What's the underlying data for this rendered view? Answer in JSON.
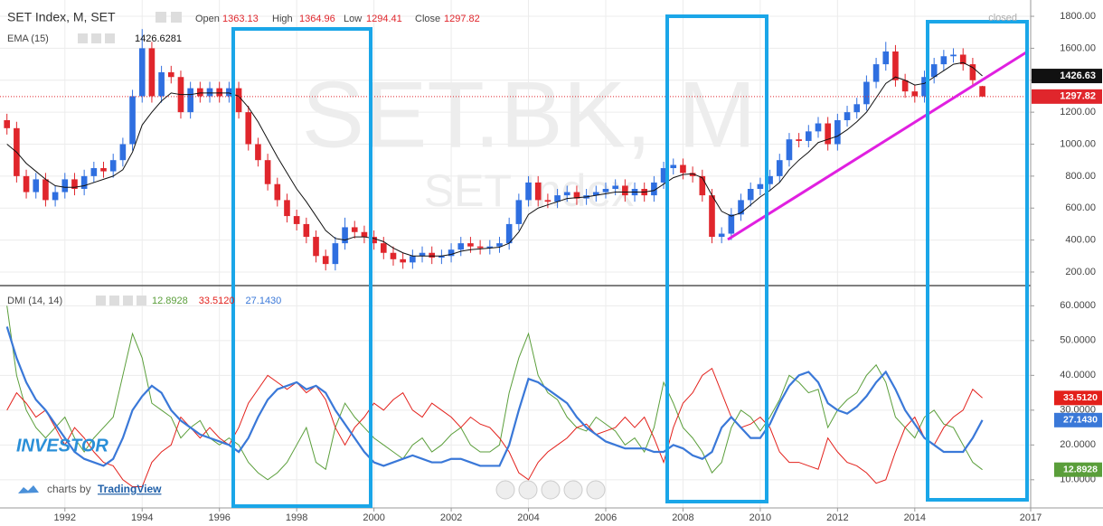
{
  "chart_data": [
    {
      "type": "candlestick",
      "title": "SET Index, M, SET",
      "watermark": "SET.BK, M",
      "watermark_sub": "SET Index",
      "ohlc_labels": [
        "Open",
        "High",
        "Low",
        "Close"
      ],
      "status": "closed",
      "x": [
        1990.5,
        1990.75,
        1991,
        1991.25,
        1991.5,
        1991.75,
        1992,
        1992.25,
        1992.5,
        1992.75,
        1993,
        1993.25,
        1993.5,
        1993.75,
        1994,
        1994.25,
        1994.5,
        1994.75,
        1995,
        1995.25,
        1995.5,
        1995.75,
        1996,
        1996.25,
        1996.5,
        1996.75,
        1997,
        1997.25,
        1997.5,
        1997.75,
        1998,
        1998.25,
        1998.5,
        1998.75,
        1999,
        1999.25,
        1999.5,
        1999.75,
        2000,
        2000.25,
        2000.5,
        2000.75,
        2001,
        2001.25,
        2001.5,
        2001.75,
        2002,
        2002.25,
        2002.5,
        2002.75,
        2003,
        2003.25,
        2003.5,
        2003.75,
        2004,
        2004.25,
        2004.5,
        2004.75,
        2005,
        2005.25,
        2005.5,
        2005.75,
        2006,
        2006.25,
        2006.5,
        2006.75,
        2007,
        2007.25,
        2007.5,
        2007.75,
        2008,
        2008.25,
        2008.5,
        2008.75,
        2009,
        2009.25,
        2009.5,
        2009.75,
        2010,
        2010.25,
        2010.5,
        2010.75,
        2011,
        2011.25,
        2011.5,
        2011.75,
        2012,
        2012.25,
        2012.5,
        2012.75,
        2013,
        2013.25,
        2013.5,
        2013.75,
        2014,
        2014.25,
        2014.5,
        2014.75,
        2015,
        2015.25,
        2015.5,
        2015.75
      ],
      "open": [
        1150,
        1100,
        800,
        700,
        780,
        650,
        700,
        780,
        720,
        800,
        850,
        830,
        900,
        1000,
        1300,
        1600,
        1300,
        1450,
        1420,
        1200,
        1350,
        1300,
        1350,
        1300,
        1350,
        1200,
        1000,
        900,
        750,
        650,
        550,
        500,
        420,
        300,
        250,
        380,
        480,
        450,
        420,
        380,
        320,
        280,
        260,
        300,
        320,
        290,
        300,
        340,
        380,
        360,
        350,
        360,
        380,
        500,
        650,
        760,
        650,
        640,
        680,
        700,
        660,
        680,
        700,
        720,
        740,
        680,
        720,
        680,
        760,
        850,
        870,
        820,
        800,
        680,
        420,
        440,
        560,
        650,
        720,
        750,
        800,
        900,
        1030,
        1020,
        1080,
        1130,
        1000,
        1150,
        1200,
        1250,
        1390,
        1500,
        1580,
        1400,
        1330,
        1300,
        1420,
        1500,
        1550,
        1560,
        1500,
        1363.13
      ],
      "high": [
        1190,
        1140,
        840,
        820,
        820,
        740,
        820,
        820,
        840,
        890,
        890,
        940,
        1040,
        1340,
        1720,
        1640,
        1490,
        1490,
        1460,
        1390,
        1390,
        1390,
        1390,
        1390,
        1390,
        1240,
        1040,
        940,
        790,
        690,
        590,
        540,
        460,
        340,
        420,
        540,
        520,
        490,
        460,
        420,
        360,
        320,
        340,
        360,
        360,
        340,
        380,
        420,
        420,
        400,
        400,
        420,
        540,
        690,
        800,
        800,
        690,
        720,
        740,
        740,
        720,
        740,
        760,
        780,
        780,
        760,
        760,
        800,
        890,
        910,
        910,
        860,
        840,
        720,
        480,
        600,
        690,
        760,
        790,
        840,
        940,
        1070,
        1070,
        1120,
        1170,
        1170,
        1190,
        1240,
        1290,
        1430,
        1540,
        1640,
        1620,
        1440,
        1370,
        1460,
        1540,
        1590,
        1600,
        1600,
        1540,
        1364.96
      ],
      "low": [
        1060,
        760,
        660,
        660,
        610,
        610,
        660,
        680,
        680,
        760,
        790,
        790,
        860,
        960,
        1260,
        1260,
        1260,
        1380,
        1160,
        1160,
        1260,
        1260,
        1260,
        1260,
        1160,
        960,
        860,
        710,
        610,
        510,
        460,
        380,
        260,
        210,
        210,
        340,
        410,
        380,
        340,
        280,
        240,
        220,
        220,
        260,
        250,
        250,
        260,
        300,
        320,
        310,
        310,
        320,
        340,
        460,
        610,
        610,
        600,
        600,
        640,
        620,
        620,
        640,
        660,
        680,
        640,
        640,
        640,
        640,
        720,
        810,
        780,
        760,
        640,
        380,
        380,
        400,
        520,
        610,
        680,
        710,
        760,
        860,
        980,
        980,
        1040,
        960,
        960,
        1110,
        1160,
        1210,
        1350,
        1460,
        1360,
        1290,
        1260,
        1260,
        1380,
        1460,
        1510,
        1460,
        1360,
        1294.41
      ],
      "close": [
        1100,
        800,
        700,
        780,
        650,
        700,
        780,
        720,
        800,
        850,
        830,
        900,
        1000,
        1300,
        1600,
        1300,
        1450,
        1420,
        1200,
        1350,
        1300,
        1350,
        1300,
        1350,
        1200,
        1000,
        900,
        750,
        650,
        550,
        500,
        420,
        300,
        250,
        380,
        480,
        450,
        420,
        380,
        320,
        280,
        260,
        300,
        320,
        290,
        300,
        340,
        380,
        360,
        350,
        360,
        380,
        500,
        650,
        760,
        650,
        640,
        680,
        700,
        660,
        680,
        700,
        720,
        740,
        680,
        720,
        680,
        760,
        850,
        870,
        820,
        800,
        680,
        420,
        440,
        560,
        650,
        720,
        750,
        800,
        900,
        1030,
        1020,
        1080,
        1130,
        1000,
        1150,
        1200,
        1250,
        1390,
        1500,
        1580,
        1400,
        1330,
        1300,
        1420,
        1500,
        1550,
        1560,
        1500,
        1400,
        1297.82
      ],
      "up_color": "#2f6fe0",
      "down_color": "#e0262c",
      "overlay": {
        "name": "EMA (15)",
        "color": "#111111",
        "values": [
          1000,
          950,
          880,
          830,
          780,
          740,
          730,
          730,
          740,
          760,
          780,
          800,
          840,
          950,
          1120,
          1200,
          1270,
          1320,
          1310,
          1310,
          1320,
          1320,
          1320,
          1320,
          1300,
          1230,
          1140,
          1030,
          920,
          820,
          720,
          640,
          550,
          460,
          410,
          400,
          420,
          420,
          410,
          390,
          350,
          320,
          300,
          300,
          300,
          300,
          310,
          330,
          340,
          345,
          350,
          355,
          380,
          450,
          560,
          600,
          620,
          640,
          660,
          665,
          670,
          680,
          690,
          700,
          700,
          700,
          700,
          710,
          750,
          790,
          810,
          815,
          790,
          680,
          580,
          550,
          570,
          620,
          670,
          710,
          760,
          840,
          900,
          950,
          1010,
          1030,
          1050,
          1090,
          1140,
          1200,
          1290,
          1380,
          1420,
          1400,
          1370,
          1380,
          1420,
          1460,
          1500,
          1510,
          1480,
          1426.6281
        ]
      },
      "price_tags": [
        {
          "value": 1426.63,
          "color": "#111111",
          "dotted": false
        },
        {
          "value": 1297.82,
          "color": "#e0262c",
          "dotted": true
        }
      ],
      "xlim": [
        1990.32,
        2017
      ],
      "ylim": [
        115,
        1902
      ],
      "xticks": [
        1992,
        1994,
        1996,
        1998,
        2000,
        2002,
        2004,
        2006,
        2008,
        2010,
        2012,
        2014,
        2017
      ],
      "yticks": [
        {
          "value": 200,
          "label": "200.00"
        },
        {
          "value": 400,
          "label": "400.00"
        },
        {
          "value": 600,
          "label": "600.00"
        },
        {
          "value": 800,
          "label": "800.00"
        },
        {
          "value": 1000,
          "label": "1000.00"
        },
        {
          "value": 1200,
          "label": "1200.00"
        },
        {
          "value": 1400,
          "label": "1400.00"
        },
        {
          "value": 1600,
          "label": "1600.00"
        },
        {
          "value": 1800,
          "label": "1800.00"
        }
      ],
      "grid": true
    },
    {
      "type": "line",
      "title": "DMI (14, 14)",
      "ylim": [
        1.9,
        65.8
      ],
      "yticks": [
        {
          "value": 10,
          "label": "10.0000"
        },
        {
          "value": 20,
          "label": "20.0000"
        },
        {
          "value": 30,
          "label": "30.0000"
        },
        {
          "value": 40,
          "label": "40.0000"
        },
        {
          "value": 50,
          "label": "50.0000"
        },
        {
          "value": 60,
          "label": "60.0000"
        }
      ],
      "grid": true,
      "series": [
        {
          "color": "#5a9e3a",
          "width": 1,
          "readout": 12.8928,
          "values": [
            60,
            40,
            30,
            25,
            22,
            25,
            28,
            22,
            18,
            22,
            25,
            28,
            40,
            52,
            45,
            32,
            30,
            28,
            22,
            25,
            27,
            22,
            20,
            22,
            20,
            15,
            12,
            10,
            12,
            15,
            20,
            25,
            15,
            13,
            25,
            32,
            28,
            25,
            22,
            20,
            18,
            16,
            20,
            22,
            18,
            20,
            23,
            25,
            20,
            18,
            18,
            20,
            35,
            45,
            52,
            40,
            35,
            33,
            28,
            25,
            24,
            28,
            26,
            24,
            20,
            22,
            18,
            25,
            38,
            32,
            25,
            22,
            18,
            12,
            15,
            25,
            30,
            28,
            24,
            28,
            33,
            40,
            38,
            35,
            36,
            25,
            30,
            33,
            35,
            40,
            43,
            38,
            28,
            25,
            22,
            28,
            30,
            26,
            25,
            20,
            15,
            12.8928
          ]
        },
        {
          "color": "#e3201b",
          "width": 1,
          "readout": {
            "value": 33.512,
            "label": "33.5120"
          },
          "values": [
            30,
            35,
            32,
            28,
            30,
            25,
            20,
            25,
            22,
            18,
            15,
            14,
            10,
            8,
            8,
            15,
            18,
            20,
            28,
            25,
            22,
            25,
            22,
            20,
            25,
            32,
            36,
            40,
            38,
            36,
            38,
            35,
            37,
            33,
            25,
            20,
            25,
            28,
            32,
            30,
            33,
            35,
            30,
            28,
            32,
            30,
            28,
            25,
            28,
            26,
            25,
            22,
            18,
            12,
            10,
            15,
            18,
            20,
            22,
            25,
            26,
            23,
            24,
            25,
            28,
            25,
            28,
            22,
            15,
            25,
            32,
            35,
            40,
            42,
            35,
            28,
            25,
            26,
            28,
            25,
            18,
            15,
            15,
            14,
            13,
            22,
            18,
            15,
            14,
            12,
            9,
            10,
            18,
            25,
            28,
            22,
            20,
            25,
            28,
            30,
            36,
            33.512
          ]
        },
        {
          "color": "#3a78d8",
          "width": 2.2,
          "readout": {
            "value": 27.143,
            "label": "27.1430"
          },
          "values": [
            54,
            45,
            38,
            33,
            30,
            26,
            22,
            18,
            16,
            15,
            14,
            16,
            22,
            30,
            34,
            37,
            35,
            30,
            27,
            25,
            23,
            22,
            21,
            20,
            18,
            22,
            28,
            33,
            36,
            37,
            38,
            36,
            37,
            35,
            30,
            26,
            22,
            18,
            15,
            14,
            15,
            16,
            17,
            16,
            15,
            15,
            16,
            16,
            15,
            14,
            14,
            14,
            20,
            30,
            39,
            38,
            36,
            34,
            32,
            28,
            25,
            23,
            21,
            20,
            19,
            19,
            19,
            18,
            18,
            20,
            19,
            17,
            16,
            18,
            25,
            28,
            25,
            22,
            22,
            26,
            32,
            37,
            40,
            41,
            38,
            32,
            30,
            29,
            31,
            34,
            38,
            41,
            36,
            30,
            26,
            22,
            20,
            18,
            18,
            18,
            22,
            27.143
          ]
        }
      ]
    }
  ],
  "branding": {
    "logo": "INVESTOR",
    "charts_by": "charts by",
    "provider": "TradingView"
  }
}
